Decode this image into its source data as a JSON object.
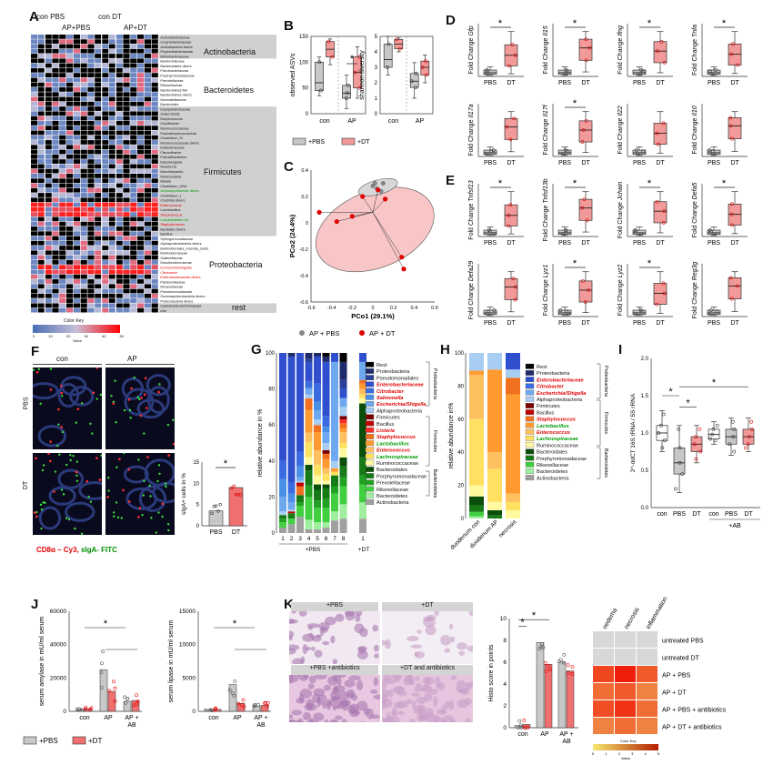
{
  "panel_letters": [
    "A",
    "B",
    "C",
    "D",
    "E",
    "F",
    "G",
    "H",
    "I",
    "J",
    "K"
  ],
  "A": {
    "col_headers": [
      "con PBS",
      "AP+PBS",
      "con DT",
      "AP+DT"
    ],
    "groups": [
      "Actinobacteria",
      "Bacteroidetes",
      "Firmicutes",
      "Proteobacteria",
      "rest"
    ],
    "color_key": {
      "title": "Color Key",
      "ticks": [
        "0",
        "10",
        "20",
        "30",
        "40",
        "50"
      ],
      "xlabel": "Value",
      "colors": [
        "#4a6fb5",
        "#c8bfd8",
        "#ff0000"
      ]
    },
    "taxa": [
      "Actinobacteriaceae",
      "Corynebacteriaceae",
      "Actinobacteria divers",
      "Propionibacteriaceae",
      "Bifidobacteriaceae",
      "Bacteroidaceae",
      "Bacteroidales divers",
      "Flavobacteriaceae",
      "Porphyromonadaceae",
      "Prevotellaceae",
      "Rikenellaceae",
      "Bacteroidetes NA",
      "Bacteroidetes divers",
      "Marinilabiliaceae",
      "Bacteroides",
      "Erysipelotrichaceae",
      "Anaerofustis",
      "Butyricicoccus",
      "Oscillibacter",
      "Ruminococcaceae",
      "Peptostreptococcaceae",
      "Clostridium_IV",
      "Ruminococcaceae divers",
      "Eubacteriaceae",
      "Flavonifractor",
      "Faecalibacterium",
      "Eisenbergiella",
      "Roseburia",
      "Marvinbryantia",
      "Robinsoniella",
      "Blautia",
      "Clostridium_XlVa",
      "Actinomycetaceae divers",
      "Clostridium_1",
      "Clostridia divers",
      "Enterococcus",
      "Lactobacillus",
      "Streptococcus",
      "Lactobacillales NA",
      "Staphylococcus",
      "Bacillales divers",
      "Bacillus",
      "Sphingomonadaceae",
      "Alphaproteobacteria divers",
      "Burkholderiales_incertae_sedis",
      "Burkholderiaceae",
      "Sutterellaceae",
      "Desulfovibrionaceae",
      "Escherichia/Shigella",
      "Citrobacter",
      "Enterobacteriaceae divers",
      "Pasteurellaceae",
      "Moraxellaceae",
      "Pseudomonadaceae",
      "Gammaproteobacteria divers",
      "Proteobacteria divers",
      "Cyanobacteria/Chloroplast",
      "rest"
    ]
  },
  "B": {
    "panels": [
      {
        "ylabel": "observed ASVs",
        "ticks": [
          "0",
          "50",
          "100",
          "150"
        ],
        "categories": [
          "con",
          "AP"
        ],
        "star": "*"
      },
      {
        "ylabel": "shannon diversity",
        "ticks": [
          "0",
          "1",
          "2",
          "3",
          "4",
          "5"
        ],
        "categories": [
          "con",
          "AP"
        ]
      }
    ],
    "legend": [
      "+PBS",
      "+DT"
    ]
  },
  "C": {
    "xlabel": "PCo1 (29.1%)",
    "ylabel": "PCo2 (24.4%)",
    "xticks": [
      "-0.6",
      "-0.4",
      "-0.2",
      "0",
      "0.2",
      "0.4",
      "0.6"
    ],
    "yticks": [
      "-0.6",
      "-0.4",
      "-0.2",
      "0",
      "0.2",
      "0.4"
    ],
    "legend": [
      "AP + PBS",
      "AP + DT"
    ]
  },
  "D": {
    "genes": [
      "Gfp",
      "Il15",
      "Ifng",
      "Tnfa",
      "Il17a",
      "Il17f",
      "Il22",
      "Il10"
    ],
    "ylabel_prefix": "Fold Change",
    "categories": [
      "PBS",
      "DT"
    ],
    "stars": [
      true,
      true,
      true,
      true,
      false,
      true,
      false,
      false
    ]
  },
  "E": {
    "genes": [
      "Tnfsf13",
      "Tnfsf13b",
      "Jchain",
      "Defa5",
      "Defa29",
      "Lyz1",
      "Lyz2",
      "Reg3g"
    ],
    "ylabel_prefix": "Fold Change",
    "categories": [
      "PBS",
      "DT"
    ],
    "stars": [
      true,
      true,
      true,
      true,
      false,
      true,
      true,
      false
    ]
  },
  "F": {
    "cols": [
      "con",
      "AP"
    ],
    "rows": [
      "PBS",
      "DT"
    ],
    "caption_red": "CD8α – Cy3,",
    "caption_green": "sIgA- FITC",
    "bar": {
      "ylabel": "sIgA+ cells in %",
      "categories": [
        "PBS",
        "DT"
      ],
      "values": [
        3.5,
        9
      ],
      "ticks": [
        "0",
        "5",
        "10",
        "15"
      ],
      "star": "*"
    }
  },
  "G": {
    "ylabel": "relative abundance in %",
    "xticks": [
      "1",
      "2",
      "3",
      "4",
      "5",
      "6",
      "7",
      "8",
      "1"
    ],
    "xgroup1": "+PBS",
    "xgroup2": "+DT",
    "yticks": [
      "0",
      "20",
      "40",
      "60",
      "80",
      "100"
    ],
    "legend": [
      {
        "label": "Rest",
        "color": "#000000"
      },
      {
        "label": "Proteobacteria",
        "color": "#1f2a6b"
      },
      {
        "label": "Pseudomonadales",
        "color": "#2a3f9a"
      },
      {
        "label": "Enterobacteriaceae",
        "color": "#2f4fcf",
        "red": true
      },
      {
        "label": "Citrobacter",
        "color": "#3b6be0",
        "red": true
      },
      {
        "label": "Salmonella",
        "color": "#4a8fe6",
        "red": true
      },
      {
        "label": "Escherichia/Shigella",
        "color": "#6ea8ef",
        "red": true
      },
      {
        "label": "Alphaproteobacteria",
        "color": "#a7cdf3"
      },
      {
        "label": "Firmicutes",
        "color": "#7a0000"
      },
      {
        "label": "Bacillus",
        "color": "#c00000"
      },
      {
        "label": "Listeria",
        "color": "#ff2a2a",
        "red": true
      },
      {
        "label": "Staphylococcus",
        "color": "#f07020",
        "red": true
      },
      {
        "label": "Lactobacillus",
        "color": "#ff9a30",
        "green": true
      },
      {
        "label": "Enterococcus",
        "color": "#ffc060",
        "red": true
      },
      {
        "label": "Lachnospiraceae",
        "color": "#ffe060",
        "green": true
      },
      {
        "label": "Ruminococcaceae",
        "color": "#fffaa0"
      },
      {
        "label": "Bacteroidales",
        "color": "#0b4d0b"
      },
      {
        "label": "Porphyromonadaceae",
        "color": "#167a16"
      },
      {
        "label": "Prevotellaceae",
        "color": "#22a022"
      },
      {
        "label": "Rikenellaceae",
        "color": "#3fcf3f"
      },
      {
        "label": "Bacteroidetes",
        "color": "#9fef9f"
      },
      {
        "label": "Actinobacteria",
        "color": "#a0a0a0"
      }
    ],
    "brackets": [
      "Proteobacteria",
      "Firmicutes",
      "Bacteroidetes"
    ]
  },
  "H": {
    "ylabel": "relative abundance in%",
    "categories": [
      "duodenum con",
      "duodenum AP",
      "necrosis"
    ],
    "yticks": [
      "0",
      "20",
      "40",
      "60",
      "80",
      "100"
    ],
    "legend": [
      {
        "label": "Rest",
        "color": "#000000"
      },
      {
        "label": "Proteobacteria",
        "color": "#1f2a6b"
      },
      {
        "label": "Enterobacteriaceae",
        "color": "#2f4fcf",
        "red": true
      },
      {
        "label": "Citrobacter",
        "color": "#3b6be0",
        "red": true
      },
      {
        "label": "Escherichia/Shigella",
        "color": "#6ea8ef",
        "red": true
      },
      {
        "label": "Alphaproteobacteria",
        "color": "#a7cdf3"
      },
      {
        "label": "Firmicutes",
        "color": "#7a0000"
      },
      {
        "label": "Bacillus",
        "color": "#c00000"
      },
      {
        "label": "Staphylococcus",
        "color": "#f07020",
        "red": true
      },
      {
        "label": "Lactobacillus",
        "color": "#ff9a30",
        "green": true
      },
      {
        "label": "Enterococcus",
        "color": "#ffc060",
        "red": true
      },
      {
        "label": "Lachnospiraceae",
        "color": "#ffe060",
        "green": true
      },
      {
        "label": "Ruminococcaceae",
        "color": "#fffaa0"
      },
      {
        "label": "Bacteroidales",
        "color": "#0b4d0b"
      },
      {
        "label": "Porphyromonadaceae",
        "color": "#167a16"
      },
      {
        "label": "Rikenellaceae",
        "color": "#3fcf3f"
      },
      {
        "label": "Bacteroidetes",
        "color": "#9fef9f"
      },
      {
        "label": "Actinobacteria",
        "color": "#a0a0a0"
      }
    ],
    "brackets": [
      "Proteobacteria",
      "Firmicutes",
      "Bacteroidetes"
    ]
  },
  "I": {
    "ylabel": "2^-ddCT 16S rRNA / 5S rRNA",
    "yticks": [
      "0.0",
      "0.5",
      "1.0",
      "1.5",
      "2.0"
    ],
    "categories": [
      "con",
      "PBS",
      "DT",
      "con",
      "PBS",
      "DT"
    ],
    "group": "+AB"
  },
  "J": {
    "panels": [
      {
        "ylabel": "serum amylase in mU/ml serum",
        "ticks": [
          "0",
          "20000",
          "40000",
          "60000"
        ],
        "categories": [
          "con",
          "AP",
          "AP + AB"
        ]
      },
      {
        "ylabel": "serum lipase in mU/ml serum",
        "ticks": [
          "0",
          "5000",
          "10000",
          "15000"
        ],
        "categories": [
          "con",
          "AP",
          "AP + AB"
        ]
      }
    ],
    "legend": [
      "+PBS",
      "+DT"
    ]
  },
  "K": {
    "image_titles": [
      "+PBS",
      "+DT",
      "+PBS +antibiotics",
      "+DT and antibiotics"
    ],
    "bar": {
      "ylabel": "Histo score in points",
      "ticks": [
        "0",
        "2",
        "4",
        "6",
        "8",
        "10"
      ],
      "categories": [
        "con",
        "AP",
        "AP + AB"
      ]
    },
    "heatmap": {
      "cols": [
        "oedema",
        "necrosis",
        "inflammation"
      ],
      "rows": [
        "untreated PBS",
        "untreated DT",
        "AP + PBS",
        "AP + DT",
        "AP + PBS + antibiotics",
        "AP + DT + antibiotics"
      ],
      "key_title": "Color Key",
      "key_ticks": [
        "0",
        "1",
        "2",
        "3",
        "4",
        "5"
      ],
      "key_xlabel": "Value"
    }
  },
  "chart_data": [
    {
      "type": "bar",
      "panel": "F",
      "title": "",
      "ylabel": "sIgA+ cells in %",
      "categories": [
        "PBS",
        "DT"
      ],
      "values": [
        3.5,
        9
      ],
      "ylim": [
        0,
        15
      ]
    },
    {
      "type": "bar",
      "panel": "K",
      "ylabel": "Histo score in points",
      "categories": [
        "con",
        "AP",
        "AP + AB"
      ],
      "series": [
        {
          "name": "+PBS",
          "values": [
            0.2,
            7.8,
            6.0
          ]
        },
        {
          "name": "+DT",
          "values": [
            0.3,
            5.8,
            5.2
          ]
        }
      ],
      "ylim": [
        0,
        10
      ]
    },
    {
      "type": "bar",
      "panel": "J-amylase",
      "ylabel": "serum amylase in mU/ml serum",
      "categories": [
        "con",
        "AP",
        "AP + AB"
      ],
      "series": [
        {
          "name": "+PBS",
          "values": [
            1000,
            25000,
            6000
          ]
        },
        {
          "name": "+DT",
          "values": [
            1500,
            12000,
            6500
          ]
        }
      ],
      "ylim": [
        0,
        60000
      ]
    },
    {
      "type": "bar",
      "panel": "J-lipase",
      "ylabel": "serum lipase in mU/ml serum",
      "categories": [
        "con",
        "AP",
        "AP + AB"
      ],
      "series": [
        {
          "name": "+PBS",
          "values": [
            200,
            4000,
            800
          ]
        },
        {
          "name": "+DT",
          "values": [
            300,
            1200,
            900
          ]
        }
      ],
      "ylim": [
        0,
        15000
      ]
    }
  ]
}
